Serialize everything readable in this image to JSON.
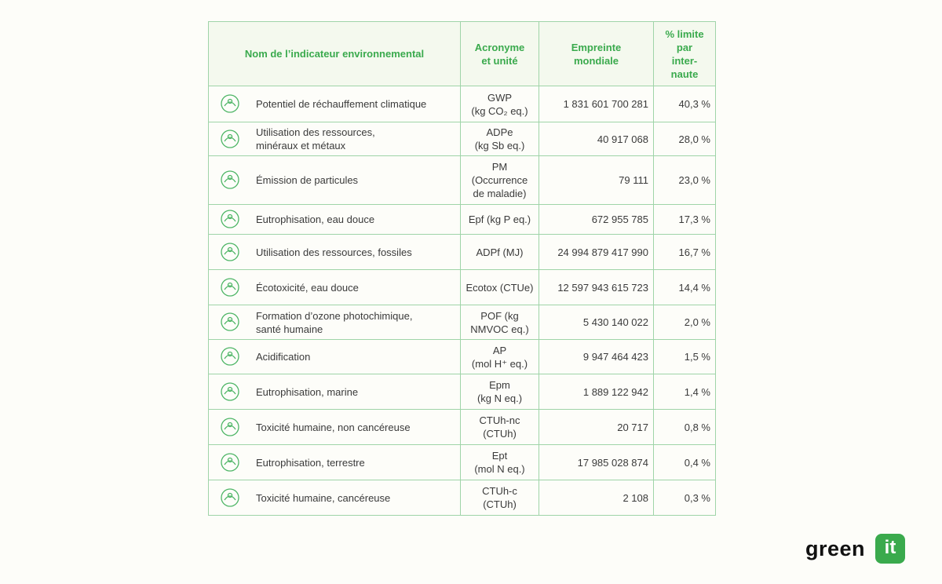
{
  "table": {
    "header": [
      [
        "Nom de l’indicateur environnemental"
      ],
      [
        "Acronyme",
        "et unité"
      ],
      [
        "Empreinte",
        "mondiale"
      ],
      [
        "% limite",
        "par",
        "inter-",
        "naute"
      ]
    ],
    "rows": [
      {
        "name": [
          "Potentiel de réchauffement climatique"
        ],
        "acronym": [
          "GWP",
          "(kg CO₂ eq.)"
        ],
        "footprint": "1 831 601 700 281",
        "percent": "40,3 %"
      },
      {
        "name": [
          "Utilisation des ressources,",
          "minéraux et métaux"
        ],
        "acronym": [
          "ADPe",
          "(kg Sb eq.)"
        ],
        "footprint": "40 917 068",
        "percent": "28,0 %"
      },
      {
        "name": [
          "Émission de particules"
        ],
        "acronym": [
          "PM",
          "(Occurrence",
          "de maladie)"
        ],
        "footprint": "79 111",
        "percent": "23,0 %"
      },
      {
        "name": [
          "Eutrophisation, eau douce"
        ],
        "acronym": [
          "Epf (kg P eq.)"
        ],
        "footprint": "672 955 785",
        "percent": "17,3 %"
      },
      {
        "name": [
          "Utilisation des ressources, fossiles"
        ],
        "acronym": [
          "ADPf (MJ)"
        ],
        "footprint": "24 994 879 417 990",
        "percent": "16,7 %"
      },
      {
        "name": [
          "Écotoxicité, eau douce"
        ],
        "acronym": [
          "Ecotox (CTUe)"
        ],
        "footprint": "12 597 943 615 723",
        "percent": "14,4 %"
      },
      {
        "name": [
          "Formation d’ozone photochimique,",
          "santé humaine"
        ],
        "acronym": [
          "POF (kg",
          "NMVOC eq.)"
        ],
        "footprint": "5 430 140 022",
        "percent": "2,0 %"
      },
      {
        "name": [
          "Acidification"
        ],
        "acronym": [
          "AP",
          "(mol H⁺ eq.)"
        ],
        "footprint": "9 947 464 423",
        "percent": "1,5 %"
      },
      {
        "name": [
          "Eutrophisation, marine"
        ],
        "acronym": [
          "Epm",
          "(kg N eq.)"
        ],
        "footprint": "1 889 122 942",
        "percent": "1,4 %"
      },
      {
        "name": [
          "Toxicité humaine, non cancéreuse"
        ],
        "acronym": [
          "CTUh-nc",
          "(CTUh)"
        ],
        "footprint": "20 717",
        "percent": "0,8 %"
      },
      {
        "name": [
          "Eutrophisation, terrestre"
        ],
        "acronym": [
          "Ept",
          "(mol N eq.)"
        ],
        "footprint": "17 985 028 874",
        "percent": "0,4 %"
      },
      {
        "name": [
          "Toxicité humaine, cancéreuse"
        ],
        "acronym": [
          "CTUh-c",
          "(CTUh)"
        ],
        "footprint": "2 108",
        "percent": "0,3 %"
      }
    ]
  },
  "logo": {
    "text": "green",
    "badge": "it"
  }
}
